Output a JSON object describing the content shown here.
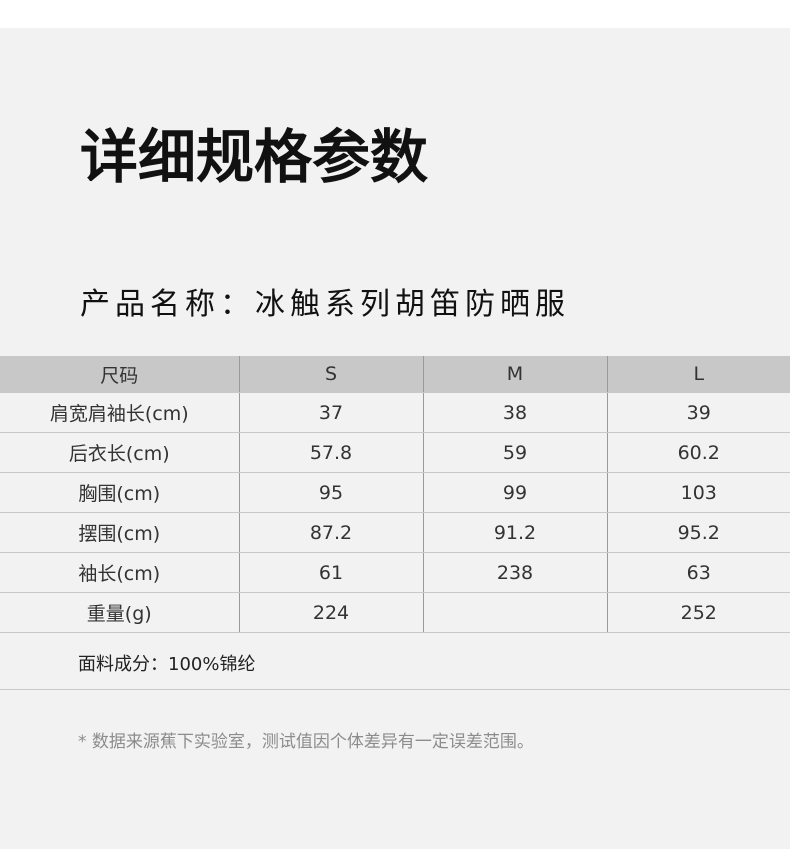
{
  "title": "详细规格参数",
  "product_name": "产品名称：冰触系列胡笛防晒服",
  "table": {
    "headers": [
      "尺码",
      "S",
      "M",
      "L"
    ],
    "rows": [
      [
        "肩宽肩袖长(cm)",
        "37",
        "38",
        "39"
      ],
      [
        "后衣长(cm)",
        "57.8",
        "59",
        "60.2"
      ],
      [
        "胸围(cm)",
        "95",
        "99",
        "103"
      ],
      [
        "摆围(cm)",
        "87.2",
        "91.2",
        "95.2"
      ],
      [
        "袖长(cm)",
        "61",
        "238",
        "63"
      ],
      [
        "重量(g)",
        "224",
        "",
        "252"
      ]
    ]
  },
  "fabric": "面料成分：100%锦纶",
  "note": "*  数据来源蕉下实验室，测试值因个体差异有一定误差范围。",
  "colors": {
    "background": "#f2f2f2",
    "header_bg": "#c8c8c8",
    "text": "#111111"
  }
}
